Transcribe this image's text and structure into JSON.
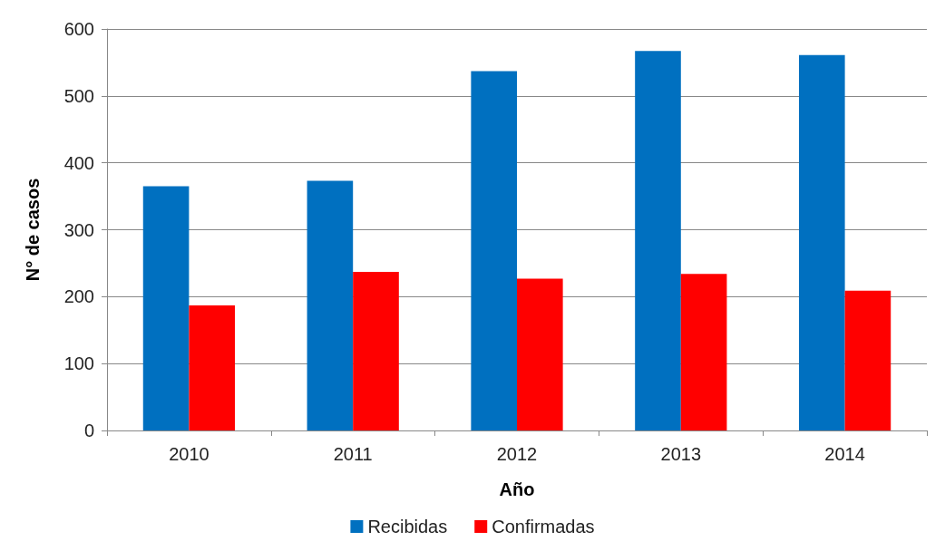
{
  "chart_data": {
    "type": "bar",
    "xlabel": "Año",
    "ylabel": "N° de casos",
    "categories": [
      "2010",
      "2011",
      "2012",
      "2013",
      "2014"
    ],
    "series": [
      {
        "name": "Recibidas",
        "color": "#0070c0",
        "values": [
          365,
          373,
          537,
          567,
          561
        ]
      },
      {
        "name": "Confirmadas",
        "color": "#ff0000",
        "values": [
          187,
          237,
          227,
          234,
          209
        ]
      }
    ],
    "ylim": [
      0,
      600
    ],
    "yticks": [
      0,
      100,
      200,
      300,
      400,
      500,
      600
    ],
    "grid": "y",
    "legend": "bottom"
  }
}
